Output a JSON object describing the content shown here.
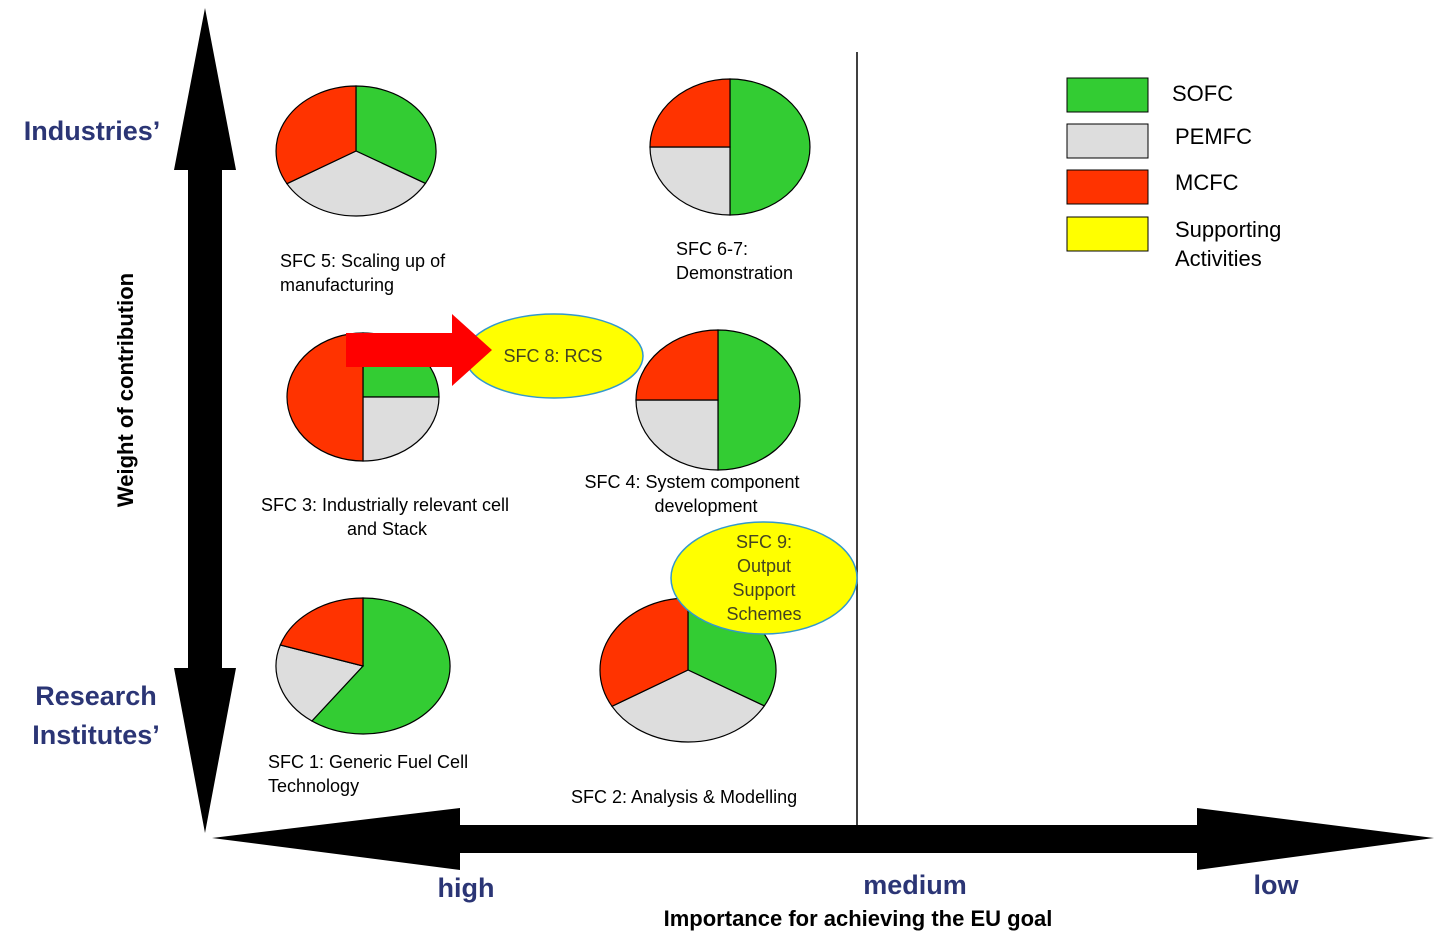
{
  "colors": {
    "sofc": "#33cc33",
    "pemfc": "#dddddd",
    "mcfc": "#ff3300",
    "supporting": "#ffff00",
    "axis_text": "#2b3575",
    "arrow_red": "#ff0000",
    "ellipse_border": "#3399cc"
  },
  "axes": {
    "y_title": "Weight of contribution",
    "y_top": "Industries’",
    "y_bottom_line1": "Research",
    "y_bottom_line2": "Institutes’",
    "x_title": "Importance for achieving the EU goal",
    "x_high": "high",
    "x_medium": "medium",
    "x_low": "low"
  },
  "legend": {
    "sofc": "SOFC",
    "pemfc": "PEMFC",
    "mcfc": "MCFC",
    "supporting_line1": "Supporting",
    "supporting_line2": "Activities"
  },
  "nodes": {
    "sfc5": {
      "line1": "SFC 5: Scaling up of",
      "line2": "manufacturing",
      "shares": {
        "sofc": 0.333,
        "pemfc": 0.333,
        "mcfc": 0.334
      }
    },
    "sfc67": {
      "line1": "SFC 6-7:",
      "line2": "Demonstration",
      "shares": {
        "sofc": 0.5,
        "pemfc": 0.25,
        "mcfc": 0.25
      }
    },
    "sfc3": {
      "line1": "SFC 3: Industrially relevant cell",
      "line2": "and Stack",
      "shares": {
        "sofc": 0.25,
        "pemfc": 0.25,
        "mcfc": 0.5
      }
    },
    "sfc4": {
      "line1": "SFC 4: System component",
      "line2": "development",
      "shares": {
        "sofc": 0.5,
        "pemfc": 0.25,
        "mcfc": 0.25
      }
    },
    "sfc1": {
      "line1": "SFC 1: Generic Fuel Cell",
      "line2": "Technology",
      "shares": {
        "sofc": 0.6,
        "pemfc": 0.2,
        "mcfc": 0.2
      }
    },
    "sfc2": {
      "line1": "SFC 2: Analysis & Modelling",
      "shares": {
        "sofc": 0.333,
        "pemfc": 0.333,
        "mcfc": 0.334
      }
    },
    "sfc8": {
      "label": "SFC 8: RCS"
    },
    "sfc9": {
      "line1": "SFC 9:",
      "line2": "Output",
      "line3": "Support",
      "line4": "Schemes"
    }
  }
}
